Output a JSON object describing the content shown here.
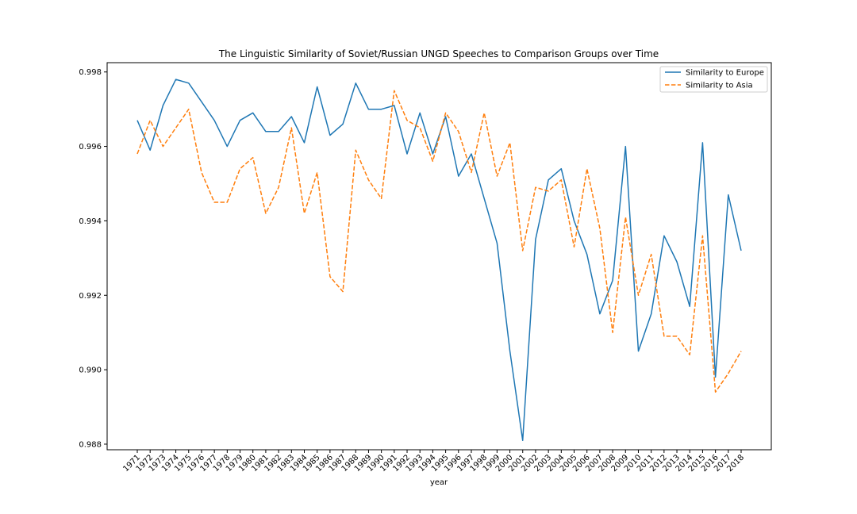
{
  "chart_data": {
    "type": "line",
    "title": "The Linguistic Similarity of Soviet/Russian UNGD Speeches to Comparison Groups over Time",
    "xlabel": "year",
    "ylabel": "",
    "ylim": [
      0.98785,
      0.99825
    ],
    "yticks": [
      "0.988",
      "0.990",
      "0.992",
      "0.994",
      "0.996",
      "0.998"
    ],
    "x": [
      "1971",
      "1972",
      "1973",
      "1974",
      "1975",
      "1976",
      "1977",
      "1978",
      "1979",
      "1980",
      "1981",
      "1982",
      "1983",
      "1984",
      "1985",
      "1986",
      "1987",
      "1988",
      "1989",
      "1990",
      "1991",
      "1992",
      "1993",
      "1994",
      "1995",
      "1996",
      "1997",
      "1998",
      "1999",
      "2000",
      "2001",
      "2002",
      "2003",
      "2004",
      "2005",
      "2006",
      "2007",
      "2008",
      "2009",
      "2010",
      "2011",
      "2012",
      "2013",
      "2014",
      "2015",
      "2016",
      "2017",
      "2018"
    ],
    "legend_position": "top-right",
    "grid": false,
    "series": [
      {
        "name": "Similarity to Europe",
        "color": "#1f77b4",
        "dash": "solid",
        "values": [
          0.9967,
          0.9959,
          0.9971,
          0.9978,
          0.9977,
          0.9972,
          0.9967,
          0.996,
          0.9967,
          0.9969,
          0.9964,
          0.9964,
          0.9968,
          0.9961,
          0.9976,
          0.9963,
          0.9966,
          0.9977,
          0.997,
          0.997,
          0.9971,
          0.9958,
          0.9969,
          0.9958,
          0.9968,
          0.9952,
          0.9958,
          0.9946,
          0.9934,
          0.9905,
          0.9881,
          0.9935,
          0.9951,
          0.9954,
          0.994,
          0.9931,
          0.9915,
          0.9924,
          0.996,
          0.9905,
          0.9915,
          0.9936,
          0.9929,
          0.9917,
          0.9961,
          0.9898,
          0.9947,
          0.9932
        ]
      },
      {
        "name": "Similarity to Asia",
        "color": "#ff7f0e",
        "dash": "dashed",
        "values": [
          0.9958,
          0.9967,
          0.996,
          0.9965,
          0.997,
          0.9953,
          0.9945,
          0.9945,
          0.9954,
          0.9957,
          0.9942,
          0.9949,
          0.9965,
          0.9942,
          0.9953,
          0.9925,
          0.9921,
          0.9959,
          0.9951,
          0.9946,
          0.9975,
          0.9967,
          0.9965,
          0.9956,
          0.9969,
          0.9964,
          0.9953,
          0.9969,
          0.9952,
          0.9961,
          0.9932,
          0.9949,
          0.9948,
          0.9951,
          0.9933,
          0.9954,
          0.9938,
          0.991,
          0.9941,
          0.992,
          0.9931,
          0.9909,
          0.9909,
          0.9904,
          0.9936,
          0.9894,
          0.9899,
          0.9905
        ]
      }
    ]
  }
}
